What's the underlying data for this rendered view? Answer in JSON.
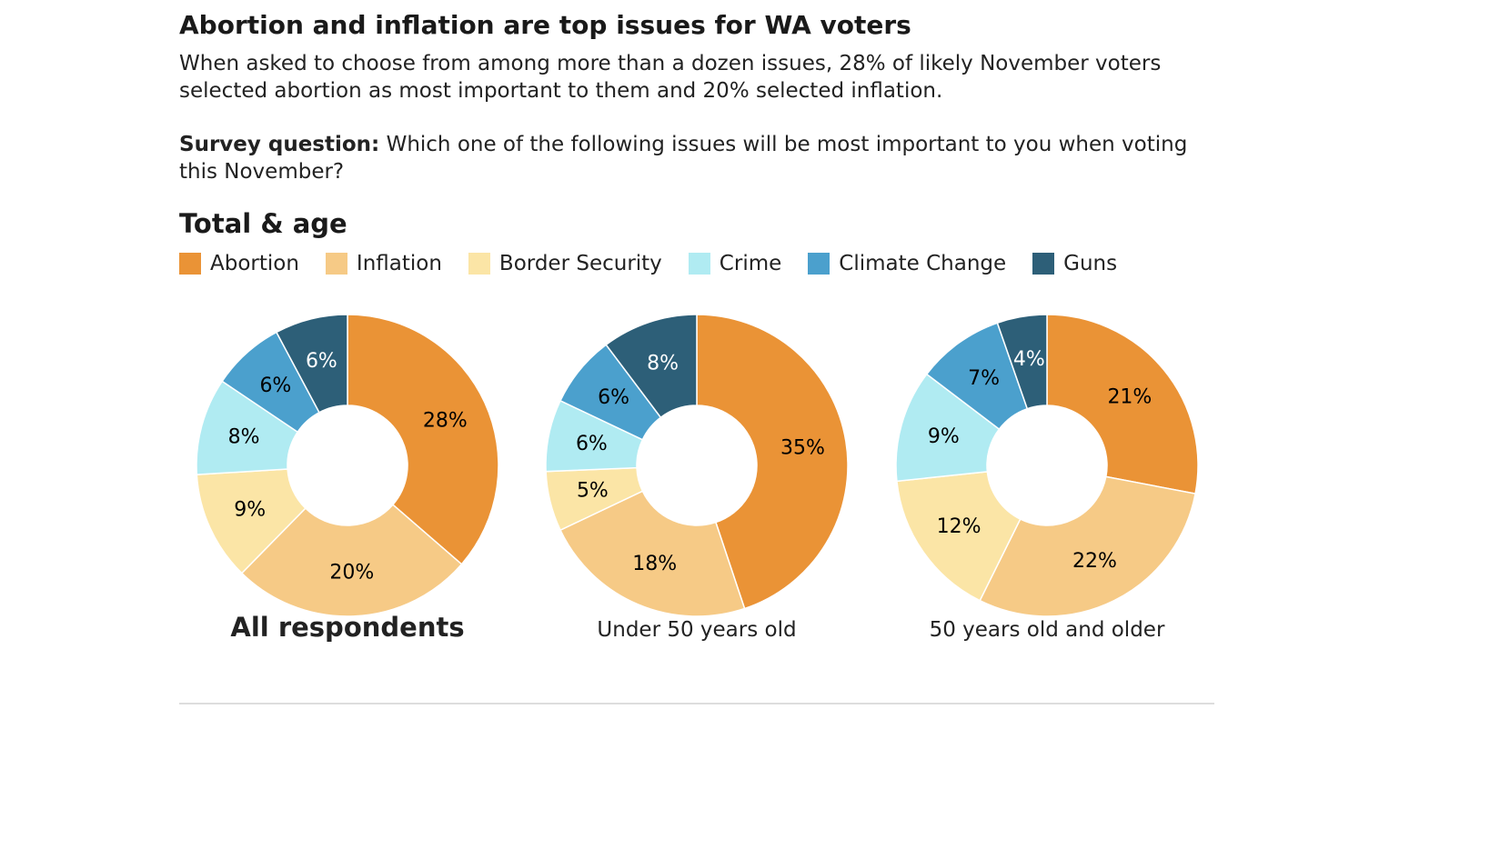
{
  "header": {
    "title": "Abortion and inflation are top issues for WA voters",
    "subtitle": "When asked to choose from among more than a dozen issues, 28% of likely November voters selected abortion as most important to them and 20% selected inflation.",
    "question_label": "Survey question:",
    "question_text": " Which one of the following issues will be most important to you when voting this November?"
  },
  "section_title": "Total & age",
  "chart_data": {
    "type": "pie",
    "variant": "donut",
    "categories": [
      "Abortion",
      "Inflation",
      "Border Security",
      "Crime",
      "Climate Change",
      "Guns"
    ],
    "colors": [
      "#ea9336",
      "#f6ca86",
      "#fbe5a6",
      "#b0ebf2",
      "#4ba0cd",
      "#2d5f78"
    ],
    "label_colors": [
      "#000000",
      "#000000",
      "#000000",
      "#000000",
      "#000000",
      "#ffffff"
    ],
    "legend_position": "top-left",
    "charts": [
      {
        "name": "All respondents",
        "emphasis": true,
        "values": [
          28,
          20,
          9,
          8,
          6,
          6
        ],
        "labels": [
          "28%",
          "20%",
          "9%",
          "8%",
          "6%",
          "6%"
        ]
      },
      {
        "name": "Under 50 years old",
        "emphasis": false,
        "values": [
          35,
          18,
          5,
          6,
          6,
          8
        ],
        "labels": [
          "35%",
          "18%",
          "5%",
          "6%",
          "6%",
          "8%"
        ]
      },
      {
        "name": "50 years old and older",
        "emphasis": false,
        "values": [
          21,
          22,
          12,
          9,
          7,
          4
        ],
        "labels": [
          "21%",
          "22%",
          "12%",
          "9%",
          "7%",
          "4%"
        ]
      }
    ]
  }
}
